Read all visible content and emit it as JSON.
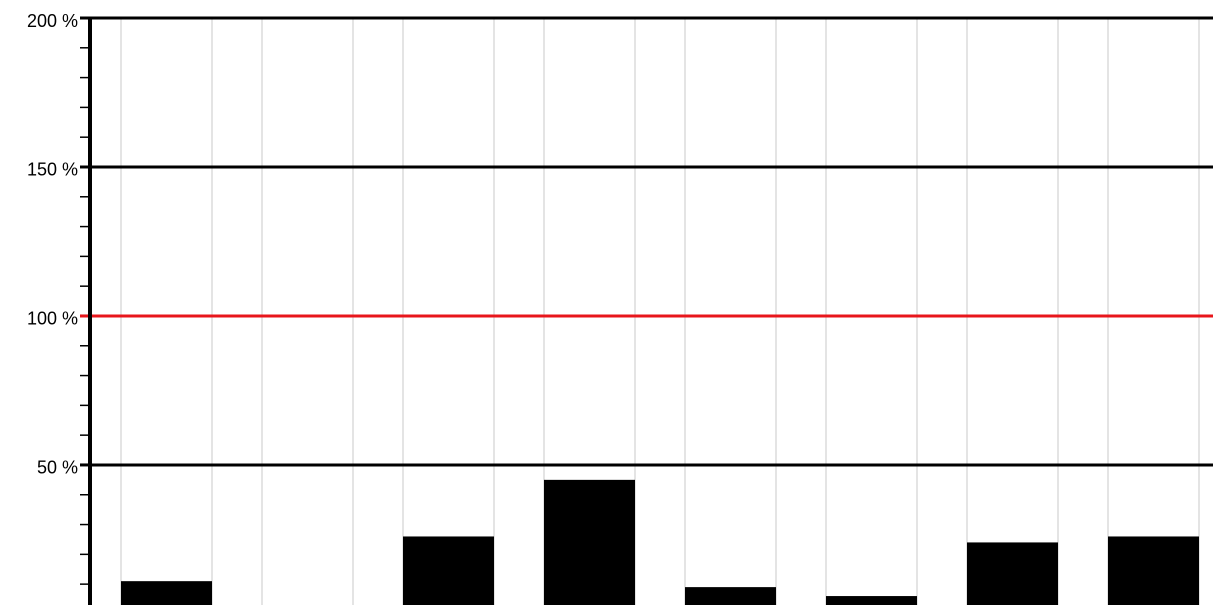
{
  "chart_data": {
    "type": "bar",
    "categories": [
      null,
      null,
      null,
      null,
      null,
      null,
      null,
      null
    ],
    "values": [
      11,
      0,
      26,
      45,
      9,
      6,
      24,
      26
    ],
    "color": "#000000",
    "ylim": [
      3,
      200
    ],
    "yticks": [
      {
        "value": 50,
        "label": "50 %"
      },
      {
        "value": 100,
        "label": "100 %"
      },
      {
        "value": 150,
        "label": "150 %"
      },
      {
        "value": 200,
        "label": "200 %"
      }
    ],
    "minor_yticks": [
      10,
      20,
      30,
      40,
      60,
      70,
      80,
      90,
      110,
      120,
      130,
      140,
      160,
      170,
      180,
      190
    ],
    "grid": true,
    "reference_line": {
      "value": 100,
      "color": "#e8161b"
    }
  }
}
